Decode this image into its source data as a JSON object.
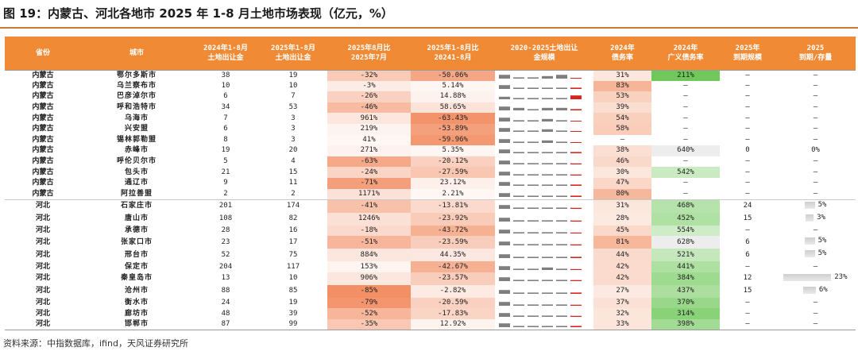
{
  "title": "图 19：内蒙古、河北各地市 2025 年 1-8 月土地市场表现（亿元，%）",
  "source": "资料来源：中指数据库，ifind，天风证券研究所",
  "colors": {
    "header_bg": "#f08a34",
    "heat_red": "#f29a6d",
    "heat_light": "#fde3d6",
    "debt_green": "#70c85a",
    "spark_gray": "#7f7f7f",
    "spark_red": "#d9241c"
  },
  "headers": [
    "省份",
    "城市",
    "2024年1-8月\n土地出让金",
    "2025年1-8月\n土地出让金",
    "2025年8月比\n2025年7月",
    "2025年1-8月比\n20241-8月",
    "2020-2025土地出让\n金规模",
    "2024年\n债务率",
    "2024年\n广义债务率",
    "2025年\n到期规模",
    "2025\n到期/存量"
  ],
  "rows": [
    {
      "province": "内蒙古",
      "city": "鄂尔多斯市",
      "y2024": "38",
      "y2025": "19",
      "mom": "-32%",
      "mom_v": -32,
      "yoy": "-50.06%",
      "yoy_v": -50.06,
      "spark": [
        3,
        1,
        1,
        2,
        3,
        0.6
      ],
      "debt": "31%",
      "debt_v": 31,
      "broad": "211%",
      "broad_v": 211,
      "due": "–",
      "ratio": "–",
      "ratio_v": null
    },
    {
      "province": "内蒙古",
      "city": "乌兰察布市",
      "y2024": "10",
      "y2025": "10",
      "mom": "-3%",
      "mom_v": -3,
      "yoy": "5.14%",
      "yoy_v": 5.14,
      "spark": [
        3,
        1,
        1,
        1,
        1,
        1
      ],
      "debt": "83%",
      "debt_v": 83,
      "broad": "–",
      "broad_v": null,
      "due": "–",
      "ratio": "–",
      "ratio_v": null
    },
    {
      "province": "内蒙古",
      "city": "巴彦淖尔市",
      "y2024": "6",
      "y2025": "7",
      "mom": "-26%",
      "mom_v": -26,
      "yoy": "14.88%",
      "yoy_v": 14.88,
      "spark": [
        2,
        1,
        1,
        1,
        1,
        3
      ],
      "debt": "53%",
      "debt_v": 53,
      "broad": "–",
      "broad_v": null,
      "due": "–",
      "ratio": "–",
      "ratio_v": null
    },
    {
      "province": "内蒙古",
      "city": "呼和浩特市",
      "y2024": "34",
      "y2025": "53",
      "mom": "-46%",
      "mom_v": -46,
      "yoy": "58.65%",
      "yoy_v": 58.65,
      "spark": [
        3,
        2,
        1,
        2,
        2,
        1
      ],
      "debt": "39%",
      "debt_v": 39,
      "broad": "–",
      "broad_v": null,
      "due": "–",
      "ratio": "–",
      "ratio_v": null
    },
    {
      "province": "内蒙古",
      "city": "乌海市",
      "y2024": "7",
      "y2025": "3",
      "mom": "961%",
      "mom_v": 961,
      "yoy": "-63.43%",
      "yoy_v": -63.43,
      "spark": [
        3,
        1,
        1,
        2,
        1,
        0.6
      ],
      "debt": "54%",
      "debt_v": 54,
      "broad": "–",
      "broad_v": null,
      "due": "–",
      "ratio": "–",
      "ratio_v": null
    },
    {
      "province": "内蒙古",
      "city": "兴安盟",
      "y2024": "6",
      "y2025": "3",
      "mom": "219%",
      "mom_v": 219,
      "yoy": "-53.89%",
      "yoy_v": -53.89,
      "spark": [
        3,
        1,
        1,
        2,
        1,
        0.6
      ],
      "debt": "58%",
      "debt_v": 58,
      "broad": "–",
      "broad_v": null,
      "due": "–",
      "ratio": "–",
      "ratio_v": null
    },
    {
      "province": "内蒙古",
      "city": "锡林郭勒盟",
      "y2024": "8",
      "y2025": "3",
      "mom": "41%",
      "mom_v": 41,
      "yoy": "-59.96%",
      "yoy_v": -59.96,
      "spark": [
        3,
        1,
        1,
        2,
        1,
        0.6
      ],
      "debt": "–",
      "debt_v": null,
      "broad": "–",
      "broad_v": null,
      "due": "–",
      "ratio": "–",
      "ratio_v": null
    },
    {
      "province": "内蒙古",
      "city": "赤峰市",
      "y2024": "19",
      "y2025": "20",
      "mom": "271%",
      "mom_v": 271,
      "yoy": "5.35%",
      "yoy_v": 5.35,
      "spark": [
        3,
        1,
        1,
        1,
        1,
        1
      ],
      "debt": "38%",
      "debt_v": 38,
      "broad": "640%",
      "broad_v": 640,
      "due": "0",
      "ratio": "0%",
      "ratio_v": 0
    },
    {
      "province": "内蒙古",
      "city": "呼伦贝尔市",
      "y2024": "5",
      "y2025": "4",
      "mom": "-63%",
      "mom_v": -63,
      "yoy": "-20.12%",
      "yoy_v": -20.12,
      "spark": [
        3,
        1,
        1,
        1,
        1,
        0.8
      ],
      "debt": "46%",
      "debt_v": 46,
      "broad": "–",
      "broad_v": null,
      "due": "–",
      "ratio": "–",
      "ratio_v": null
    },
    {
      "province": "内蒙古",
      "city": "包头市",
      "y2024": "21",
      "y2025": "15",
      "mom": "-24%",
      "mom_v": -24,
      "yoy": "-27.59%",
      "yoy_v": -27.59,
      "spark": [
        3,
        1,
        1,
        1,
        1,
        0.8
      ],
      "debt": "30%",
      "debt_v": 30,
      "broad": "542%",
      "broad_v": 542,
      "due": "–",
      "ratio": "–",
      "ratio_v": null
    },
    {
      "province": "内蒙古",
      "city": "通辽市",
      "y2024": "9",
      "y2025": "11",
      "mom": "-71%",
      "mom_v": -71,
      "yoy": "23.12%",
      "yoy_v": 23.12,
      "spark": [
        3,
        1,
        1,
        1,
        1,
        1
      ],
      "debt": "47%",
      "debt_v": 47,
      "broad": "–",
      "broad_v": null,
      "due": "–",
      "ratio": "–",
      "ratio_v": null
    },
    {
      "province": "内蒙古",
      "city": "阿拉善盟",
      "y2024": "2",
      "y2025": "2",
      "mom": "1171%",
      "mom_v": 1171,
      "yoy": "2.21%",
      "yoy_v": 2.21,
      "spark": [
        3,
        1,
        1,
        1,
        1,
        1
      ],
      "debt": "80%",
      "debt_v": 80,
      "broad": "–",
      "broad_v": null,
      "due": "–",
      "ratio": "–",
      "ratio_v": null
    },
    {
      "province": "河北",
      "city": "石家庄市",
      "y2024": "201",
      "y2025": "174",
      "mom": "-41%",
      "mom_v": -41,
      "yoy": "-13.81%",
      "yoy_v": -13.81,
      "spark": [
        3,
        1,
        1,
        1,
        1,
        0.8
      ],
      "debt": "31%",
      "debt_v": 31,
      "broad": "468%",
      "broad_v": 468,
      "due": "24",
      "ratio": "5%",
      "ratio_v": 5
    },
    {
      "province": "河北",
      "city": "唐山市",
      "y2024": "108",
      "y2025": "82",
      "mom": "1246%",
      "mom_v": 1246,
      "yoy": "-23.92%",
      "yoy_v": -23.92,
      "spark": [
        3,
        1,
        1,
        1,
        1,
        0.8
      ],
      "debt": "28%",
      "debt_v": 28,
      "broad": "452%",
      "broad_v": 452,
      "due": "15",
      "ratio": "3%",
      "ratio_v": 3
    },
    {
      "province": "河北",
      "city": "承德市",
      "y2024": "28",
      "y2025": "16",
      "mom": "-18%",
      "mom_v": -18,
      "yoy": "-43.72%",
      "yoy_v": -43.72,
      "spark": [
        3,
        1,
        1,
        1,
        1,
        0.7
      ],
      "debt": "45%",
      "debt_v": 45,
      "broad": "554%",
      "broad_v": 554,
      "due": "–",
      "ratio": "–",
      "ratio_v": null
    },
    {
      "province": "河北",
      "city": "张家口市",
      "y2024": "23",
      "y2025": "17",
      "mom": "-51%",
      "mom_v": -51,
      "yoy": "-23.59%",
      "yoy_v": -23.59,
      "spark": [
        3,
        1,
        1,
        1,
        1,
        0.8
      ],
      "debt": "81%",
      "debt_v": 81,
      "broad": "628%",
      "broad_v": 628,
      "due": "6",
      "ratio": "5%",
      "ratio_v": 5
    },
    {
      "province": "河北",
      "city": "邢台市",
      "y2024": "52",
      "y2025": "75",
      "mom": "884%",
      "mom_v": 884,
      "yoy": "44.35%",
      "yoy_v": 44.35,
      "spark": [
        3,
        1,
        1,
        1,
        1,
        1
      ],
      "debt": "44%",
      "debt_v": 44,
      "broad": "521%",
      "broad_v": 521,
      "due": "6",
      "ratio": "5%",
      "ratio_v": 5
    },
    {
      "province": "河北",
      "city": "保定市",
      "y2024": "204",
      "y2025": "117",
      "mom": "153%",
      "mom_v": 153,
      "yoy": "-42.67%",
      "yoy_v": -42.67,
      "spark": [
        3,
        1,
        1,
        2,
        1,
        0.7
      ],
      "debt": "42%",
      "debt_v": 42,
      "broad": "441%",
      "broad_v": 441,
      "due": "–",
      "ratio": "–",
      "ratio_v": null
    },
    {
      "province": "河北",
      "city": "秦皇岛市",
      "y2024": "13",
      "y2025": "10",
      "mom": "906%",
      "mom_v": 906,
      "yoy": "-23.57%",
      "yoy_v": -23.57,
      "spark": [
        3,
        1,
        1,
        1,
        1,
        0.8
      ],
      "debt": "42%",
      "debt_v": 42,
      "broad": "384%",
      "broad_v": 384,
      "due": "12",
      "ratio": "23%",
      "ratio_v": 23
    },
    {
      "province": "河北",
      "city": "沧州市",
      "y2024": "88",
      "y2025": "85",
      "mom": "-85%",
      "mom_v": -85,
      "yoy": "-2.82%",
      "yoy_v": -2.82,
      "spark": [
        3,
        1,
        1,
        1,
        1,
        1
      ],
      "debt": "27%",
      "debt_v": 27,
      "broad": "437%",
      "broad_v": 437,
      "due": "15",
      "ratio": "6%",
      "ratio_v": 6
    },
    {
      "province": "河北",
      "city": "衡水市",
      "y2024": "24",
      "y2025": "19",
      "mom": "-79%",
      "mom_v": -79,
      "yoy": "-20.59%",
      "yoy_v": -20.59,
      "spark": [
        3,
        1,
        1,
        1,
        1,
        0.8
      ],
      "debt": "37%",
      "debt_v": 37,
      "broad": "370%",
      "broad_v": 370,
      "due": "–",
      "ratio": "–",
      "ratio_v": null
    },
    {
      "province": "河北",
      "city": "廊坊市",
      "y2024": "48",
      "y2025": "39",
      "mom": "-52%",
      "mom_v": -52,
      "yoy": "-17.83%",
      "yoy_v": -17.83,
      "spark": [
        3,
        1,
        1,
        1,
        1,
        0.8
      ],
      "debt": "32%",
      "debt_v": 32,
      "broad": "314%",
      "broad_v": 314,
      "due": "–",
      "ratio": "–",
      "ratio_v": null
    },
    {
      "province": "河北",
      "city": "邯郸市",
      "y2024": "87",
      "y2025": "99",
      "mom": "-35%",
      "mom_v": -35,
      "yoy": "12.92%",
      "yoy_v": 12.92,
      "spark": [
        3,
        1,
        1,
        1,
        1,
        1
      ],
      "debt": "33%",
      "debt_v": 33,
      "broad": "398%",
      "broad_v": 398,
      "due": "–",
      "ratio": "–",
      "ratio_v": null
    }
  ]
}
